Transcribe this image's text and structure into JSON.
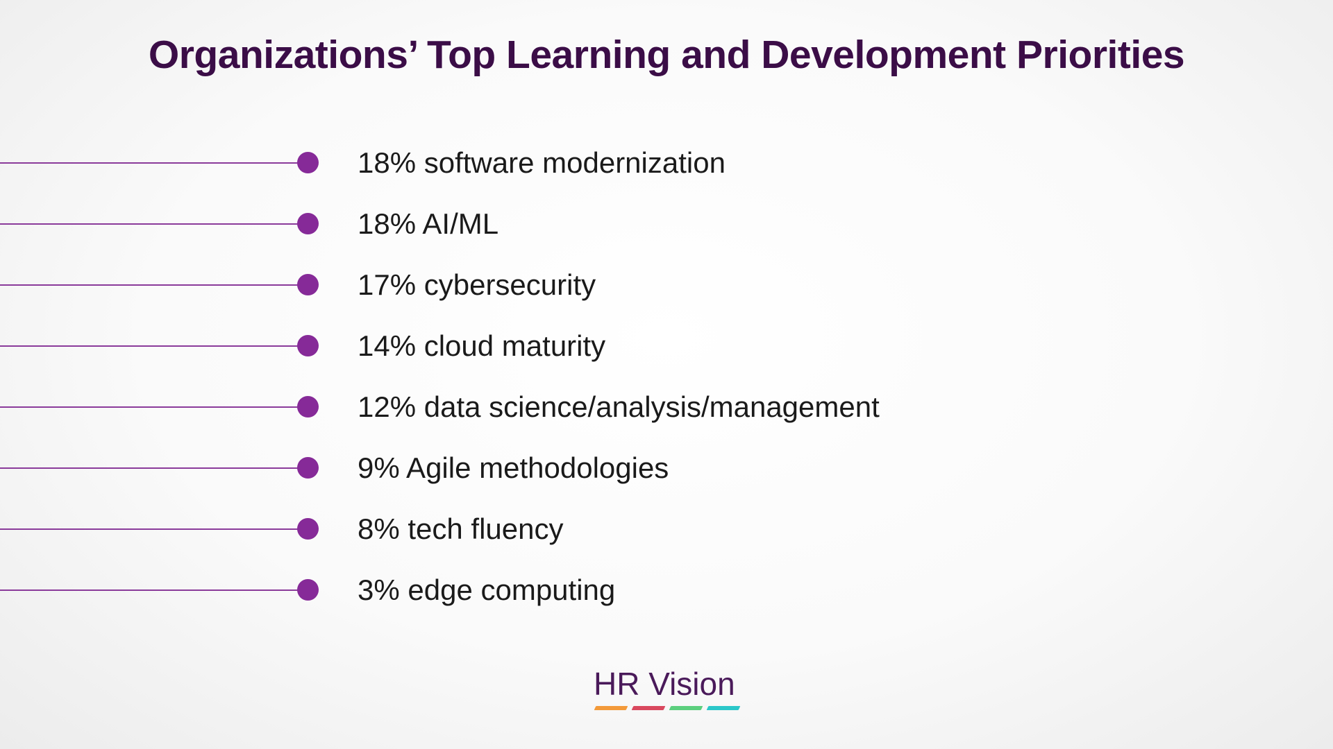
{
  "title": "Organizations’ Top Learning and Development Priorities",
  "items": [
    {
      "label": "18% software modernization"
    },
    {
      "label": "18% AI/ML"
    },
    {
      "label": "17% cybersecurity"
    },
    {
      "label": "14% cloud maturity"
    },
    {
      "label": "12% data science/analysis/management"
    },
    {
      "label": "9% Agile methodologies"
    },
    {
      "label": "8% tech fluency"
    },
    {
      "label": "3% edge computing"
    }
  ],
  "logo": {
    "text": "HR Vision",
    "bar_colors": [
      "#f39a3a",
      "#d9485e",
      "#5ccf7e",
      "#2bc7c9"
    ]
  },
  "colors": {
    "title": "#3b0d47",
    "accent": "#862a98",
    "text": "#1a1a1a"
  }
}
